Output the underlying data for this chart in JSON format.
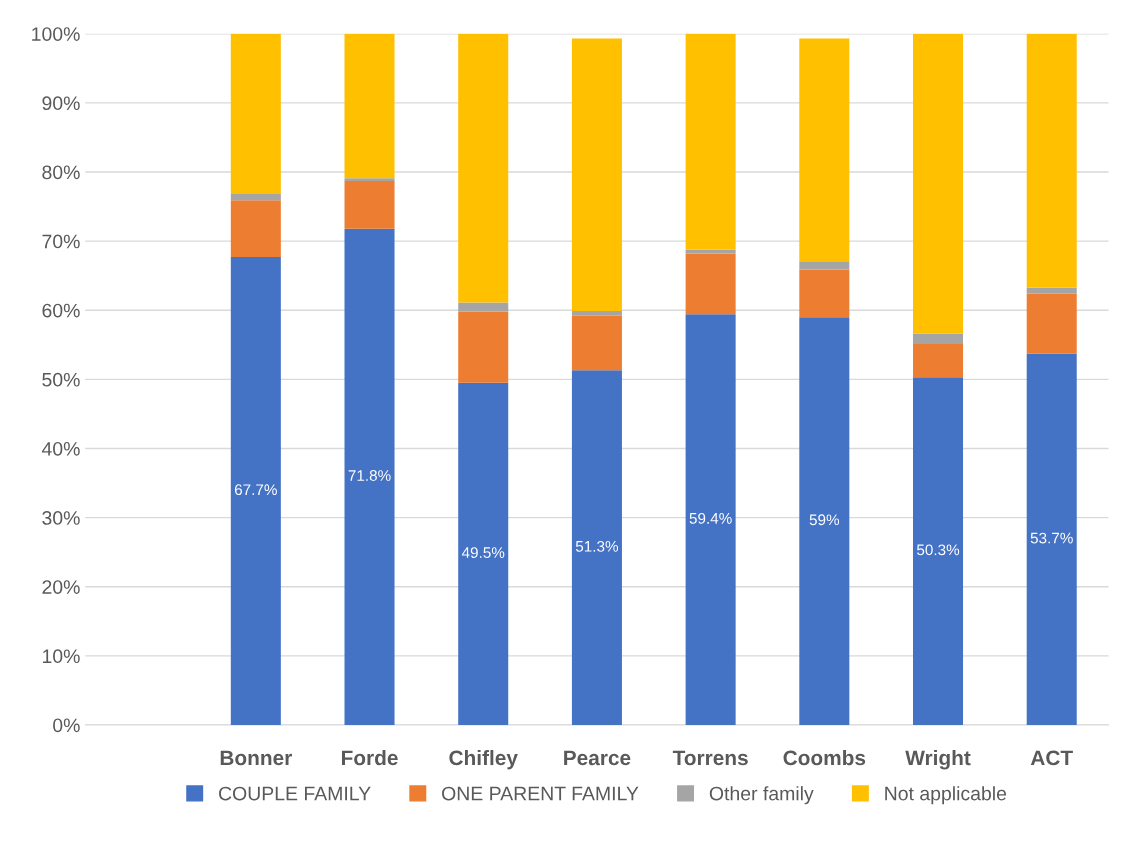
{
  "chart_data": {
    "type": "bar",
    "stacked": true,
    "categories": [
      null,
      "Bonner",
      "Forde",
      "Chifley",
      "Pearce",
      "Torrens",
      "Coombs",
      "Wright",
      "ACT"
    ],
    "series": [
      {
        "name": "COUPLE FAMILY",
        "color": "#4472c4",
        "values": [
          null,
          67.7,
          71.8,
          49.5,
          51.3,
          59.4,
          59,
          50.3,
          53.7
        ],
        "value_labels": [
          null,
          "67.7%",
          "71.8%",
          "49.5%",
          "51.3%",
          "59.4%",
          "59%",
          "50.3%",
          "53.7%"
        ]
      },
      {
        "name": "ONE PARENT FAMILY",
        "color": "#ed7d31",
        "values": [
          null,
          8.2,
          6.9,
          10.3,
          7.9,
          8.8,
          6.9,
          4.8,
          8.7
        ]
      },
      {
        "name": "Other family",
        "color": "#a5a5a5",
        "values": [
          null,
          0.9,
          0.4,
          1.3,
          0.7,
          0.6,
          1.2,
          1.5,
          0.9
        ]
      },
      {
        "name": "Not applicable",
        "color": "#ffc000",
        "values": [
          null,
          23.2,
          20.9,
          38.9,
          39.4,
          31.2,
          32.2,
          43.4,
          36.7
        ]
      }
    ],
    "ylim": [
      0,
      100
    ],
    "yticks": [
      {
        "value": 0,
        "label": "0%"
      },
      {
        "value": 10,
        "label": "10%"
      },
      {
        "value": 20,
        "label": "20%"
      },
      {
        "value": 30,
        "label": "30%"
      },
      {
        "value": 40,
        "label": "40%"
      },
      {
        "value": 50,
        "label": "50%"
      },
      {
        "value": 60,
        "label": "60%"
      },
      {
        "value": 70,
        "label": "70%"
      },
      {
        "value": 80,
        "label": "80%"
      },
      {
        "value": 90,
        "label": "90%"
      },
      {
        "value": 100,
        "label": "100%"
      }
    ],
    "grid": "y",
    "legend": "bottom"
  }
}
